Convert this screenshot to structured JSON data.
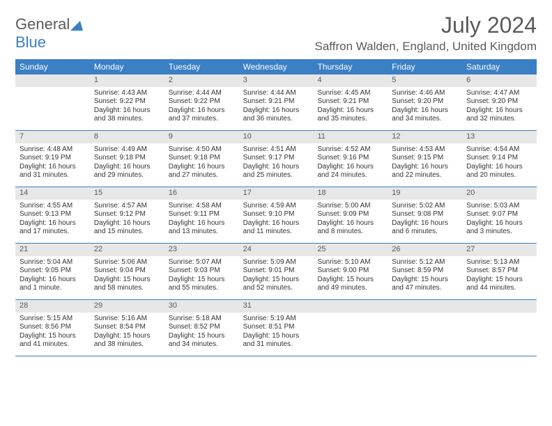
{
  "logo": {
    "general": "General",
    "blue": "Blue"
  },
  "title": "July 2024",
  "location": "Saffron Walden, England, United Kingdom",
  "day_headers": [
    "Sunday",
    "Monday",
    "Tuesday",
    "Wednesday",
    "Thursday",
    "Friday",
    "Saturday"
  ],
  "header_bg": "#3b7fc4",
  "daynum_bg": "#e7e7e7",
  "weeks": [
    [
      {
        "num": "",
        "lines": []
      },
      {
        "num": "1",
        "lines": [
          "Sunrise: 4:43 AM",
          "Sunset: 9:22 PM",
          "Daylight: 16 hours",
          "and 38 minutes."
        ]
      },
      {
        "num": "2",
        "lines": [
          "Sunrise: 4:44 AM",
          "Sunset: 9:22 PM",
          "Daylight: 16 hours",
          "and 37 minutes."
        ]
      },
      {
        "num": "3",
        "lines": [
          "Sunrise: 4:44 AM",
          "Sunset: 9:21 PM",
          "Daylight: 16 hours",
          "and 36 minutes."
        ]
      },
      {
        "num": "4",
        "lines": [
          "Sunrise: 4:45 AM",
          "Sunset: 9:21 PM",
          "Daylight: 16 hours",
          "and 35 minutes."
        ]
      },
      {
        "num": "5",
        "lines": [
          "Sunrise: 4:46 AM",
          "Sunset: 9:20 PM",
          "Daylight: 16 hours",
          "and 34 minutes."
        ]
      },
      {
        "num": "6",
        "lines": [
          "Sunrise: 4:47 AM",
          "Sunset: 9:20 PM",
          "Daylight: 16 hours",
          "and 32 minutes."
        ]
      }
    ],
    [
      {
        "num": "7",
        "lines": [
          "Sunrise: 4:48 AM",
          "Sunset: 9:19 PM",
          "Daylight: 16 hours",
          "and 31 minutes."
        ]
      },
      {
        "num": "8",
        "lines": [
          "Sunrise: 4:49 AM",
          "Sunset: 9:18 PM",
          "Daylight: 16 hours",
          "and 29 minutes."
        ]
      },
      {
        "num": "9",
        "lines": [
          "Sunrise: 4:50 AM",
          "Sunset: 9:18 PM",
          "Daylight: 16 hours",
          "and 27 minutes."
        ]
      },
      {
        "num": "10",
        "lines": [
          "Sunrise: 4:51 AM",
          "Sunset: 9:17 PM",
          "Daylight: 16 hours",
          "and 25 minutes."
        ]
      },
      {
        "num": "11",
        "lines": [
          "Sunrise: 4:52 AM",
          "Sunset: 9:16 PM",
          "Daylight: 16 hours",
          "and 24 minutes."
        ]
      },
      {
        "num": "12",
        "lines": [
          "Sunrise: 4:53 AM",
          "Sunset: 9:15 PM",
          "Daylight: 16 hours",
          "and 22 minutes."
        ]
      },
      {
        "num": "13",
        "lines": [
          "Sunrise: 4:54 AM",
          "Sunset: 9:14 PM",
          "Daylight: 16 hours",
          "and 20 minutes."
        ]
      }
    ],
    [
      {
        "num": "14",
        "lines": [
          "Sunrise: 4:55 AM",
          "Sunset: 9:13 PM",
          "Daylight: 16 hours",
          "and 17 minutes."
        ]
      },
      {
        "num": "15",
        "lines": [
          "Sunrise: 4:57 AM",
          "Sunset: 9:12 PM",
          "Daylight: 16 hours",
          "and 15 minutes."
        ]
      },
      {
        "num": "16",
        "lines": [
          "Sunrise: 4:58 AM",
          "Sunset: 9:11 PM",
          "Daylight: 16 hours",
          "and 13 minutes."
        ]
      },
      {
        "num": "17",
        "lines": [
          "Sunrise: 4:59 AM",
          "Sunset: 9:10 PM",
          "Daylight: 16 hours",
          "and 11 minutes."
        ]
      },
      {
        "num": "18",
        "lines": [
          "Sunrise: 5:00 AM",
          "Sunset: 9:09 PM",
          "Daylight: 16 hours",
          "and 8 minutes."
        ]
      },
      {
        "num": "19",
        "lines": [
          "Sunrise: 5:02 AM",
          "Sunset: 9:08 PM",
          "Daylight: 16 hours",
          "and 6 minutes."
        ]
      },
      {
        "num": "20",
        "lines": [
          "Sunrise: 5:03 AM",
          "Sunset: 9:07 PM",
          "Daylight: 16 hours",
          "and 3 minutes."
        ]
      }
    ],
    [
      {
        "num": "21",
        "lines": [
          "Sunrise: 5:04 AM",
          "Sunset: 9:05 PM",
          "Daylight: 16 hours",
          "and 1 minute."
        ]
      },
      {
        "num": "22",
        "lines": [
          "Sunrise: 5:06 AM",
          "Sunset: 9:04 PM",
          "Daylight: 15 hours",
          "and 58 minutes."
        ]
      },
      {
        "num": "23",
        "lines": [
          "Sunrise: 5:07 AM",
          "Sunset: 9:03 PM",
          "Daylight: 15 hours",
          "and 55 minutes."
        ]
      },
      {
        "num": "24",
        "lines": [
          "Sunrise: 5:09 AM",
          "Sunset: 9:01 PM",
          "Daylight: 15 hours",
          "and 52 minutes."
        ]
      },
      {
        "num": "25",
        "lines": [
          "Sunrise: 5:10 AM",
          "Sunset: 9:00 PM",
          "Daylight: 15 hours",
          "and 49 minutes."
        ]
      },
      {
        "num": "26",
        "lines": [
          "Sunrise: 5:12 AM",
          "Sunset: 8:59 PM",
          "Daylight: 15 hours",
          "and 47 minutes."
        ]
      },
      {
        "num": "27",
        "lines": [
          "Sunrise: 5:13 AM",
          "Sunset: 8:57 PM",
          "Daylight: 15 hours",
          "and 44 minutes."
        ]
      }
    ],
    [
      {
        "num": "28",
        "lines": [
          "Sunrise: 5:15 AM",
          "Sunset: 8:56 PM",
          "Daylight: 15 hours",
          "and 41 minutes."
        ]
      },
      {
        "num": "29",
        "lines": [
          "Sunrise: 5:16 AM",
          "Sunset: 8:54 PM",
          "Daylight: 15 hours",
          "and 38 minutes."
        ]
      },
      {
        "num": "30",
        "lines": [
          "Sunrise: 5:18 AM",
          "Sunset: 8:52 PM",
          "Daylight: 15 hours",
          "and 34 minutes."
        ]
      },
      {
        "num": "31",
        "lines": [
          "Sunrise: 5:19 AM",
          "Sunset: 8:51 PM",
          "Daylight: 15 hours",
          "and 31 minutes."
        ]
      },
      {
        "num": "",
        "lines": []
      },
      {
        "num": "",
        "lines": []
      },
      {
        "num": "",
        "lines": []
      }
    ]
  ]
}
